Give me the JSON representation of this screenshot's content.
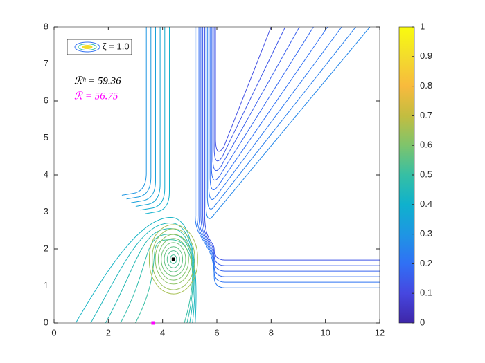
{
  "chart_data": {
    "type": "contour",
    "xlim": [
      0,
      12
    ],
    "ylim": [
      0,
      8
    ],
    "xticks": [
      0,
      2,
      4,
      6,
      8,
      10,
      12
    ],
    "yticks": [
      0,
      1,
      2,
      3,
      4,
      5,
      6,
      7,
      8
    ],
    "levels": [
      0.12,
      0.14,
      0.16,
      0.18,
      0.2,
      0.22,
      0.24,
      0.26,
      0.13,
      0.15,
      0.17,
      0.19,
      0.21,
      0.23,
      0.3,
      0.32,
      0.34,
      0.36,
      0.38,
      0.4,
      0.42,
      0.44,
      0.46,
      0.48,
      0.5,
      0.52,
      0.54,
      0.56,
      0.58,
      0.6,
      0.62,
      0.64,
      0.66
    ],
    "colorbar": {
      "clim": [
        0,
        1
      ],
      "ticks": [
        0,
        0.1,
        0.2,
        0.3,
        0.4,
        0.5,
        0.6,
        0.7,
        0.8,
        0.9,
        1
      ]
    },
    "legend": {
      "label": "ζ = 1.0",
      "corner": "northwest"
    },
    "annotations": [
      {
        "text": "ℛʰ = 59.36",
        "color": "#000000"
      },
      {
        "text": "ℛ = 56.75",
        "color": "#ff00ff"
      }
    ],
    "points": [
      {
        "x": 4.4,
        "y": 1.72,
        "color": "#000000"
      },
      {
        "x": 3.65,
        "y": 0,
        "color": "#ff00ff"
      }
    ]
  }
}
